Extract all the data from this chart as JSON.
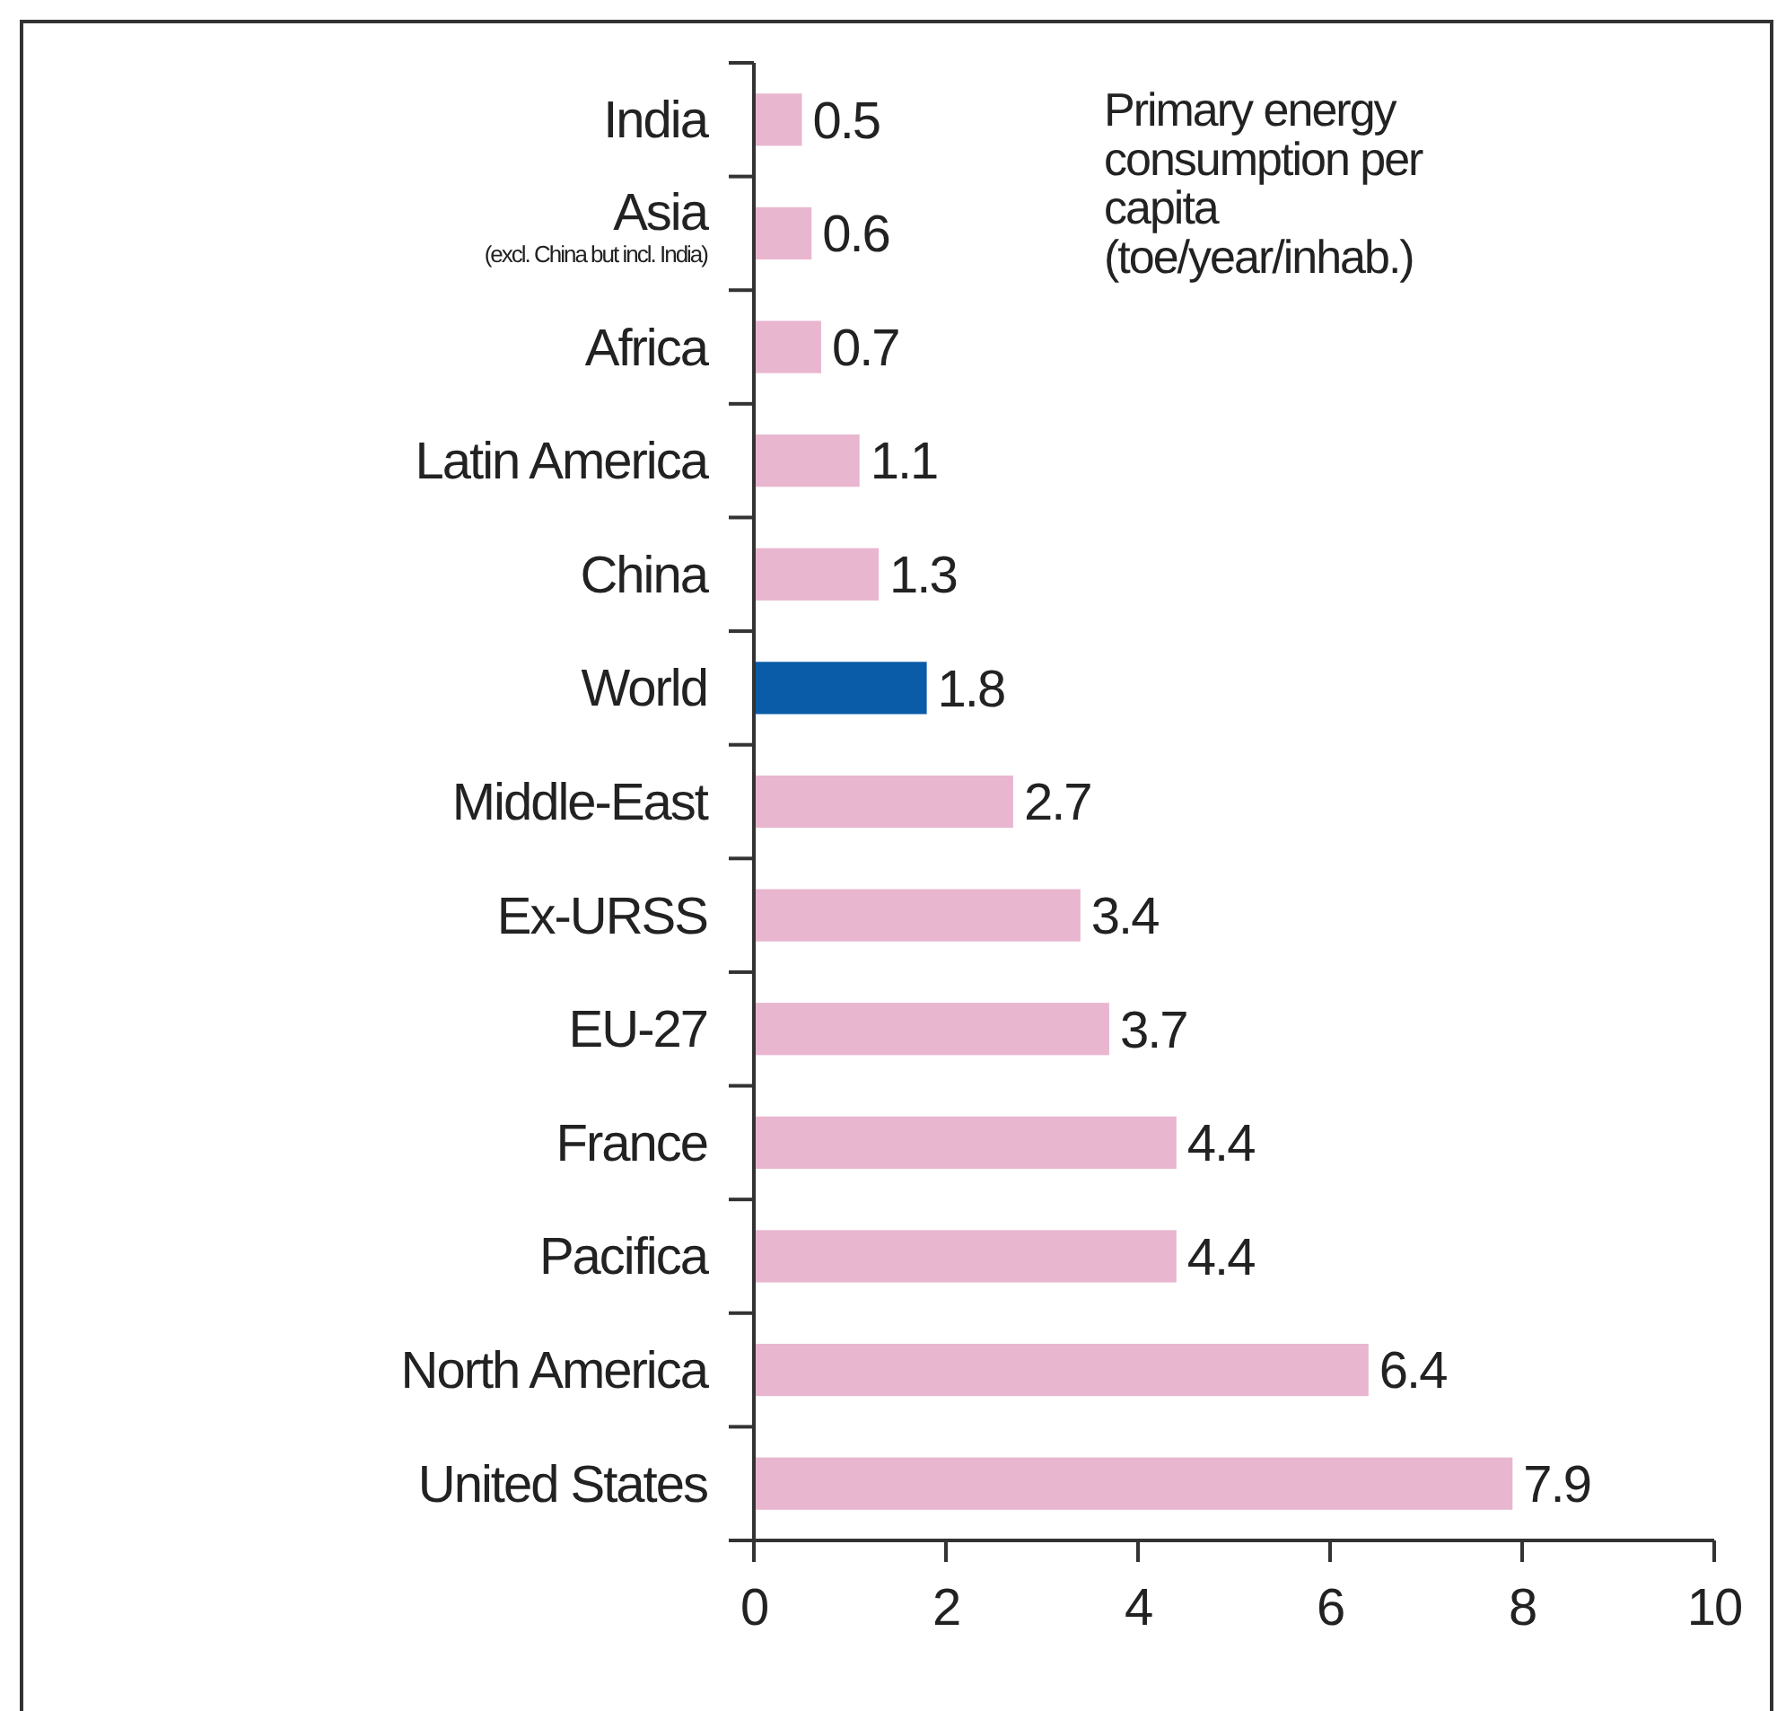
{
  "chart_data": {
    "type": "bar",
    "orientation": "horizontal",
    "title": "Primary energy consumption per capita (toe/year/inhab.)",
    "categories": [
      "India",
      "Asia\n(excl. China but incl. India)",
      "Africa",
      "Latin America",
      "China",
      "World",
      "Middle-East",
      "Ex-URSS",
      "EU-27",
      "France",
      "Pacifica",
      "North America",
      "United States"
    ],
    "values": [
      0.5,
      0.6,
      0.7,
      1.1,
      1.3,
      1.8,
      2.7,
      3.4,
      3.7,
      4.4,
      4.4,
      6.4,
      7.9
    ],
    "colors": [
      "#e8b6cf",
      "#e8b6cf",
      "#e8b6cf",
      "#e8b6cf",
      "#e8b6cf",
      "#0b5ca8",
      "#e8b6cf",
      "#e8b6cf",
      "#e8b6cf",
      "#e8b6cf",
      "#e8b6cf",
      "#e8b6cf",
      "#e8b6cf"
    ],
    "xlim": [
      0,
      10
    ],
    "xticks": [
      0,
      2,
      4,
      6,
      8,
      10
    ],
    "data_labels": true,
    "grid": false
  }
}
